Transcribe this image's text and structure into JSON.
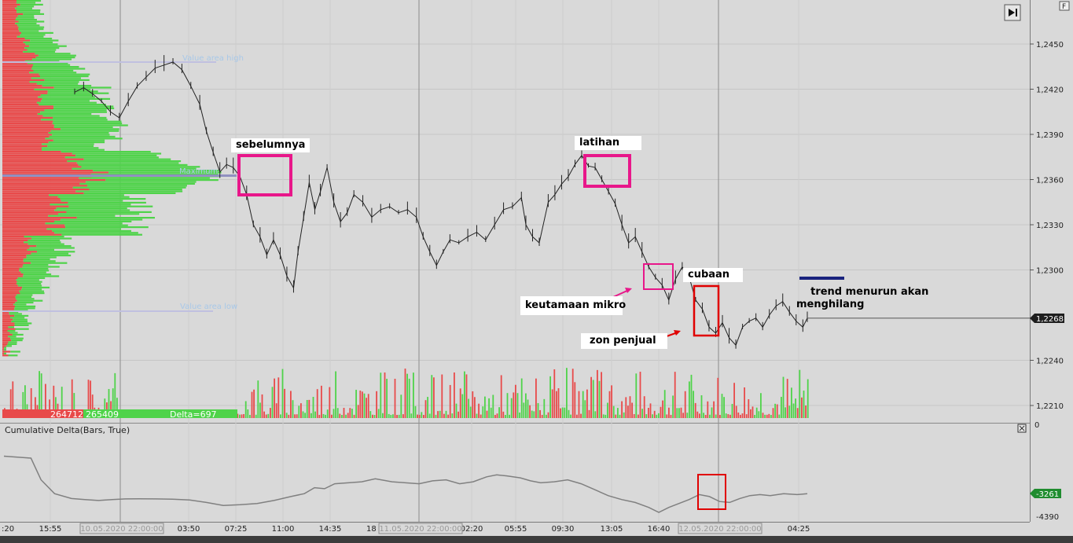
{
  "chart_data": {
    "type": "line",
    "price_axis": {
      "ticks": [
        "1,2450",
        "1,2420",
        "1,2390",
        "1,2360",
        "1,2330",
        "1,2300",
        "1,2240",
        "1,2210"
      ],
      "tick_values": [
        1.245,
        1.242,
        1.239,
        1.236,
        1.233,
        1.23,
        1.224,
        1.221
      ],
      "last_price": "1,2268",
      "last_price_value": 1.2268,
      "ylim": [
        1.2203,
        1.2478
      ]
    },
    "volume_axis_zero": "0",
    "x_ticks": [
      "15:55",
      "03:50",
      "07:25",
      "11:00",
      "14:35",
      "02:20",
      "05:55",
      "09:30",
      "13:05",
      "16:40",
      "04:25"
    ],
    "x_left_partial": ":20",
    "x_partial_18": "18",
    "date_markers": [
      "10.05.2020 22:00:00",
      "11.05.2020 22:00:00",
      "12.05.2020 22:00:00"
    ],
    "profile_labels": {
      "value_area_high": "Value area high",
      "maximum": "Maximum",
      "value_area_low": "Value area low"
    },
    "profile_stats": {
      "sell_total": "264712",
      "buy_total": "265409",
      "delta": "Delta=697"
    },
    "price_series": [
      [
        0,
        1.2418
      ],
      [
        8,
        1.2421
      ],
      [
        16,
        1.2417
      ],
      [
        24,
        1.2412
      ],
      [
        32,
        1.2405
      ],
      [
        40,
        1.2401
      ],
      [
        48,
        1.2412
      ],
      [
        56,
        1.2422
      ],
      [
        64,
        1.2428
      ],
      [
        72,
        1.2434
      ],
      [
        80,
        1.2436
      ],
      [
        88,
        1.2438
      ],
      [
        96,
        1.2433
      ],
      [
        104,
        1.2422
      ],
      [
        112,
        1.241
      ],
      [
        118,
        1.2392
      ],
      [
        124,
        1.2378
      ],
      [
        130,
        1.2365
      ],
      [
        136,
        1.237
      ],
      [
        142,
        1.2368
      ],
      [
        148,
        1.2362
      ],
      [
        154,
        1.235
      ],
      [
        160,
        1.233
      ],
      [
        166,
        1.2322
      ],
      [
        172,
        1.231
      ],
      [
        178,
        1.232
      ],
      [
        184,
        1.231
      ],
      [
        190,
        1.2296
      ],
      [
        196,
        1.2288
      ],
      [
        200,
        1.2312
      ],
      [
        205,
        1.2335
      ],
      [
        210,
        1.2358
      ],
      [
        215,
        1.234
      ],
      [
        220,
        1.2352
      ],
      [
        226,
        1.2368
      ],
      [
        232,
        1.2345
      ],
      [
        238,
        1.2332
      ],
      [
        244,
        1.2338
      ],
      [
        250,
        1.235
      ],
      [
        258,
        1.2345
      ],
      [
        266,
        1.2335
      ],
      [
        274,
        1.234
      ],
      [
        282,
        1.2342
      ],
      [
        290,
        1.2338
      ],
      [
        298,
        1.234
      ],
      [
        306,
        1.2335
      ],
      [
        312,
        1.2322
      ],
      [
        318,
        1.2312
      ],
      [
        324,
        1.2303
      ],
      [
        330,
        1.2312
      ],
      [
        336,
        1.232
      ],
      [
        344,
        1.2318
      ],
      [
        352,
        1.2322
      ],
      [
        360,
        1.2325
      ],
      [
        368,
        1.232
      ],
      [
        376,
        1.233
      ],
      [
        384,
        1.234
      ],
      [
        392,
        1.2342
      ],
      [
        400,
        1.2348
      ],
      [
        404,
        1.233
      ],
      [
        410,
        1.2322
      ],
      [
        416,
        1.2318
      ],
      [
        424,
        1.2345
      ],
      [
        430,
        1.235
      ],
      [
        436,
        1.2357
      ],
      [
        442,
        1.2362
      ],
      [
        448,
        1.237
      ],
      [
        454,
        1.2376
      ],
      [
        460,
        1.2369
      ],
      [
        466,
        1.2368
      ],
      [
        472,
        1.236
      ],
      [
        478,
        1.2352
      ],
      [
        484,
        1.2344
      ],
      [
        490,
        1.233
      ],
      [
        496,
        1.2318
      ],
      [
        502,
        1.2322
      ],
      [
        508,
        1.2312
      ],
      [
        514,
        1.2302
      ],
      [
        520,
        1.2295
      ],
      [
        526,
        1.229
      ],
      [
        532,
        1.228
      ],
      [
        538,
        1.2294
      ],
      [
        544,
        1.2302
      ],
      [
        550,
        1.2296
      ],
      [
        556,
        1.228
      ],
      [
        562,
        1.2274
      ],
      [
        568,
        1.2262
      ],
      [
        574,
        1.2258
      ],
      [
        580,
        1.2265
      ],
      [
        586,
        1.2255
      ],
      [
        592,
        1.225
      ],
      [
        598,
        1.2262
      ],
      [
        604,
        1.2266
      ],
      [
        610,
        1.2268
      ],
      [
        616,
        1.2262
      ],
      [
        622,
        1.227
      ],
      [
        628,
        1.2276
      ],
      [
        634,
        1.2279
      ],
      [
        640,
        1.2272
      ],
      [
        646,
        1.2266
      ],
      [
        652,
        1.2262
      ],
      [
        656,
        1.2268
      ]
    ],
    "volume_series": [
      {
        "name": "buy",
        "color": "#4fb83a"
      },
      {
        "name": "sell",
        "color": "#e84a4a"
      }
    ],
    "cumulative_delta": {
      "title": "Cumulative Delta(Bars, True)",
      "last_value": "-3261",
      "axis_value": "-4390",
      "series": [
        [
          0,
          -1300
        ],
        [
          8,
          -1350
        ],
        [
          16,
          -1400
        ],
        [
          22,
          -2500
        ],
        [
          30,
          -3200
        ],
        [
          40,
          -3450
        ],
        [
          48,
          -3500
        ],
        [
          56,
          -3550
        ],
        [
          64,
          -3500
        ],
        [
          72,
          -3470
        ],
        [
          80,
          -3460
        ],
        [
          90,
          -3470
        ],
        [
          100,
          -3480
        ],
        [
          110,
          -3520
        ],
        [
          120,
          -3650
        ],
        [
          130,
          -3800
        ],
        [
          140,
          -3760
        ],
        [
          150,
          -3700
        ],
        [
          160,
          -3550
        ],
        [
          170,
          -3350
        ],
        [
          178,
          -3200
        ],
        [
          184,
          -2900
        ],
        [
          190,
          -2950
        ],
        [
          196,
          -2700
        ],
        [
          204,
          -2650
        ],
        [
          212,
          -2600
        ],
        [
          220,
          -2450
        ],
        [
          230,
          -2600
        ],
        [
          238,
          -2650
        ],
        [
          246,
          -2700
        ],
        [
          254,
          -2550
        ],
        [
          262,
          -2500
        ],
        [
          270,
          -2700
        ],
        [
          278,
          -2600
        ],
        [
          286,
          -2350
        ],
        [
          292,
          -2250
        ],
        [
          298,
          -2300
        ],
        [
          306,
          -2400
        ],
        [
          312,
          -2550
        ],
        [
          318,
          -2650
        ],
        [
          326,
          -2600
        ],
        [
          334,
          -2500
        ],
        [
          342,
          -2700
        ],
        [
          350,
          -3000
        ],
        [
          358,
          -3300
        ],
        [
          366,
          -3500
        ],
        [
          374,
          -3650
        ],
        [
          382,
          -3900
        ],
        [
          388,
          -4150
        ],
        [
          394,
          -3900
        ],
        [
          400,
          -3700
        ],
        [
          406,
          -3500
        ],
        [
          412,
          -3250
        ],
        [
          418,
          -3350
        ],
        [
          424,
          -3600
        ],
        [
          430,
          -3650
        ],
        [
          436,
          -3450
        ],
        [
          442,
          -3300
        ],
        [
          448,
          -3250
        ],
        [
          454,
          -3300
        ],
        [
          462,
          -3200
        ],
        [
          470,
          -3250
        ],
        [
          476,
          -3200
        ]
      ]
    }
  },
  "annotations": {
    "sebelumnya": "sebelumnya",
    "latihan": "latihan",
    "keutamaan_mikro": "keutamaan mikro",
    "cubaan": "cubaan",
    "zon_penjual": "zon penjual",
    "trend": "trend menurun akan\nmenghilang"
  },
  "colors": {
    "background": "#d8d8d8",
    "panel_bg": "#d9d9d9",
    "sell": "#e84a4a",
    "buy": "#4fd34a",
    "price_line": "#222222",
    "pink_box": "#e8178a",
    "red_box": "#e00000",
    "delta_line": "#808080",
    "last_price_tag": "#1e1e1e",
    "delta_tag": "#1f8c2f",
    "trend_line": "#1a237e"
  },
  "icons": {
    "play_end": "skip-to-end-icon",
    "close_panel": "close-panel-icon",
    "corner": "f-corner-icon"
  }
}
